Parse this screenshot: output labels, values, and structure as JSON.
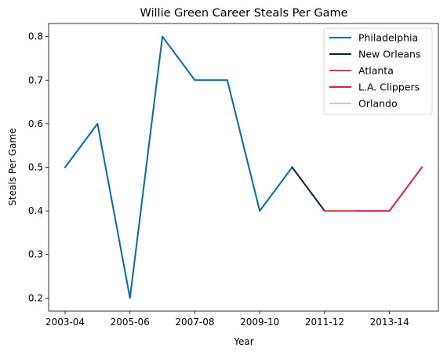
{
  "chart_data": {
    "type": "line",
    "title": "Willie Green Career Steals Per Game",
    "xlabel": "Year",
    "ylabel": "Steals Per Game",
    "x": [
      "2003-04",
      "2004-05",
      "2005-06",
      "2006-07",
      "2007-08",
      "2008-09",
      "2009-10",
      "2010-11",
      "2011-12",
      "2012-13",
      "2013-14",
      "2014-15"
    ],
    "x_tick_labels": [
      "2003-04",
      "2005-06",
      "2007-08",
      "2009-10",
      "2011-12",
      "2013-14"
    ],
    "y_ticks": [
      0.2,
      0.3,
      0.4,
      0.5,
      0.6,
      0.7,
      0.8
    ],
    "y_tick_labels": [
      "0.2",
      "0.3",
      "0.4",
      "0.5",
      "0.6",
      "0.7",
      "0.8"
    ],
    "ylim": [
      0.17,
      0.83
    ],
    "legend_position": "upper right",
    "grid": false,
    "series": [
      {
        "name": "Philadelphia",
        "color": "#006bb6",
        "points": [
          [
            "2003-04",
            0.5
          ],
          [
            "2004-05",
            0.6
          ],
          [
            "2005-06",
            0.2
          ],
          [
            "2006-07",
            0.8
          ],
          [
            "2007-08",
            0.7
          ],
          [
            "2008-09",
            0.7
          ],
          [
            "2009-10",
            0.4
          ],
          [
            "2010-11",
            0.5
          ]
        ]
      },
      {
        "name": "New Orleans",
        "color": "#0c2340",
        "points": [
          [
            "2010-11",
            0.5
          ],
          [
            "2011-12",
            0.4
          ]
        ]
      },
      {
        "name": "Atlanta",
        "color": "#e03a3e",
        "points": [
          [
            "2011-12",
            0.4
          ],
          [
            "2012-13",
            0.4
          ]
        ]
      },
      {
        "name": "L.A. Clippers",
        "color": "#e31b4c",
        "points": [
          [
            "2012-13",
            0.4
          ],
          [
            "2013-14",
            0.4
          ],
          [
            "2014-15",
            0.5
          ]
        ]
      },
      {
        "name": "Orlando",
        "color": "#c4ced4",
        "points": [
          [
            "2014-15",
            0.5
          ]
        ]
      }
    ]
  }
}
